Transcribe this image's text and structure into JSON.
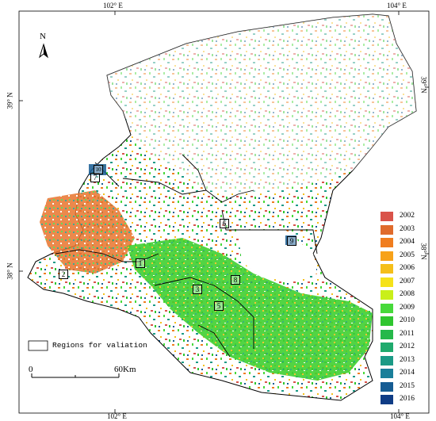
{
  "coords": {
    "top": [
      "102° E",
      "104° E"
    ],
    "bottom": [
      "102° E",
      "104° E"
    ],
    "left": [
      "39° N",
      "38° N"
    ],
    "right": [
      "39° N",
      "38° N"
    ]
  },
  "north": "N",
  "legend": [
    {
      "year": "2002",
      "color": "#d9534a"
    },
    {
      "year": "2003",
      "color": "#e06b2c"
    },
    {
      "year": "2004",
      "color": "#f07d1f"
    },
    {
      "year": "2005",
      "color": "#f7a21a"
    },
    {
      "year": "2006",
      "color": "#f5bf1a"
    },
    {
      "year": "2007",
      "color": "#f5e21a"
    },
    {
      "year": "2008",
      "color": "#c9ef1a"
    },
    {
      "year": "2009",
      "color": "#47d93b"
    },
    {
      "year": "2010",
      "color": "#2fc62f"
    },
    {
      "year": "2011",
      "color": "#26b84a"
    },
    {
      "year": "2012",
      "color": "#1faa6d"
    },
    {
      "year": "2013",
      "color": "#1b9a86"
    },
    {
      "year": "2014",
      "color": "#1a7f9a"
    },
    {
      "year": "2015",
      "color": "#165c93"
    },
    {
      "year": "2016",
      "color": "#0f3c85"
    }
  ],
  "validation_legend": "Regions for valiation",
  "scale": {
    "start": "0",
    "end": "60Km"
  },
  "sites": [
    "1",
    "2",
    "3",
    "4",
    "5",
    "6",
    "7",
    "8",
    "9",
    "10"
  ]
}
